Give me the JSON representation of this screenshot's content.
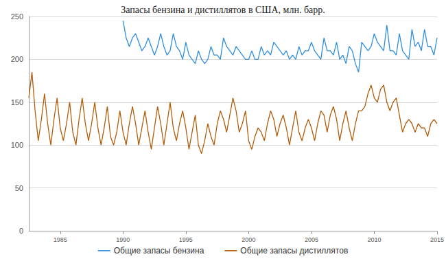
{
  "chart_data": {
    "type": "line",
    "title": "Запасы бензина и дистиллятов в США, млн. барр.",
    "x": [
      1982.5,
      1982.75,
      1983,
      1983.25,
      1983.5,
      1983.75,
      1984,
      1984.25,
      1984.5,
      1984.75,
      1985,
      1985.25,
      1985.5,
      1985.75,
      1986,
      1986.25,
      1986.5,
      1986.75,
      1987,
      1987.25,
      1987.5,
      1987.75,
      1988,
      1988.25,
      1988.5,
      1988.75,
      1989,
      1989.25,
      1989.5,
      1989.75,
      1990,
      1990.25,
      1990.5,
      1990.75,
      1991,
      1991.25,
      1991.5,
      1991.75,
      1992,
      1992.25,
      1992.5,
      1992.75,
      1993,
      1993.25,
      1993.5,
      1993.75,
      1994,
      1994.25,
      1994.5,
      1994.75,
      1995,
      1995.25,
      1995.5,
      1995.75,
      1996,
      1996.25,
      1996.5,
      1996.75,
      1997,
      1997.25,
      1997.5,
      1997.75,
      1998,
      1998.25,
      1998.5,
      1998.75,
      1999,
      1999.25,
      1999.5,
      1999.75,
      2000,
      2000.25,
      2000.5,
      2000.75,
      2001,
      2001.25,
      2001.5,
      2001.75,
      2002,
      2002.25,
      2002.5,
      2002.75,
      2003,
      2003.25,
      2003.5,
      2003.75,
      2004,
      2004.25,
      2004.5,
      2004.75,
      2005,
      2005.25,
      2005.5,
      2005.75,
      2006,
      2006.25,
      2006.5,
      2006.75,
      2007,
      2007.25,
      2007.5,
      2007.75,
      2008,
      2008.25,
      2008.5,
      2008.75,
      2009,
      2009.25,
      2009.5,
      2009.75,
      2010,
      2010.25,
      2010.5,
      2010.75,
      2011,
      2011.25,
      2011.5,
      2011.75,
      2012,
      2012.25,
      2012.5,
      2012.75,
      2013,
      2013.25,
      2013.5,
      2013.75,
      2014,
      2014.25,
      2014.5,
      2014.75,
      2015
    ],
    "series": [
      {
        "name": "Общие запасы бензина",
        "color": "#2f8ee0",
        "values": [
          null,
          null,
          null,
          null,
          null,
          null,
          null,
          null,
          null,
          null,
          null,
          null,
          null,
          null,
          null,
          null,
          null,
          null,
          null,
          null,
          null,
          null,
          null,
          null,
          null,
          null,
          null,
          null,
          null,
          null,
          245,
          225,
          215,
          225,
          230,
          220,
          210,
          215,
          225,
          215,
          205,
          215,
          230,
          215,
          205,
          210,
          230,
          215,
          210,
          200,
          220,
          205,
          200,
          195,
          210,
          200,
          195,
          200,
          215,
          205,
          205,
          200,
          225,
          215,
          210,
          205,
          215,
          210,
          205,
          200,
          200,
          210,
          200,
          200,
          215,
          205,
          210,
          205,
          220,
          215,
          210,
          205,
          210,
          200,
          205,
          200,
          215,
          205,
          210,
          210,
          220,
          210,
          205,
          200,
          225,
          210,
          210,
          205,
          220,
          200,
          205,
          195,
          215,
          210,
          195,
          185,
          220,
          215,
          210,
          215,
          230,
          220,
          215,
          210,
          240,
          210,
          210,
          205,
          230,
          210,
          205,
          200,
          235,
          215,
          220,
          210,
          235,
          215,
          215,
          205,
          225
        ]
      },
      {
        "name": "Общие запасы дистиллятов",
        "color": "#b35c0a",
        "values": [
          155,
          185,
          140,
          105,
          130,
          160,
          125,
          100,
          130,
          155,
          120,
          105,
          125,
          150,
          115,
          100,
          130,
          155,
          125,
          105,
          125,
          150,
          120,
          100,
          120,
          145,
          110,
          100,
          115,
          140,
          115,
          100,
          125,
          145,
          125,
          100,
          120,
          140,
          115,
          95,
          120,
          145,
          125,
          100,
          125,
          150,
          120,
          105,
          125,
          140,
          120,
          95,
          115,
          135,
          100,
          90,
          105,
          125,
          110,
          100,
          125,
          140,
          130,
          115,
          135,
          155,
          140,
          115,
          125,
          140,
          105,
          95,
          110,
          120,
          115,
          105,
          125,
          140,
          130,
          110,
          125,
          135,
          120,
          100,
          120,
          140,
          115,
          105,
          120,
          130,
          120,
          105,
          125,
          140,
          135,
          115,
          135,
          145,
          130,
          105,
          125,
          140,
          120,
          105,
          125,
          140,
          140,
          145,
          160,
          170,
          155,
          150,
          165,
          170,
          150,
          140,
          150,
          155,
          135,
          115,
          125,
          130,
          125,
          115,
          125,
          120,
          120,
          110,
          125,
          130,
          125
        ]
      }
    ],
    "xlim": [
      1982.5,
      2015
    ],
    "xticks": [
      1985,
      1990,
      1995,
      2000,
      2005,
      2010,
      2015
    ],
    "ylim": [
      0,
      250
    ],
    "yticks": [
      0,
      50,
      100,
      150,
      200,
      250
    ],
    "grid": true,
    "legend": "bottom"
  }
}
